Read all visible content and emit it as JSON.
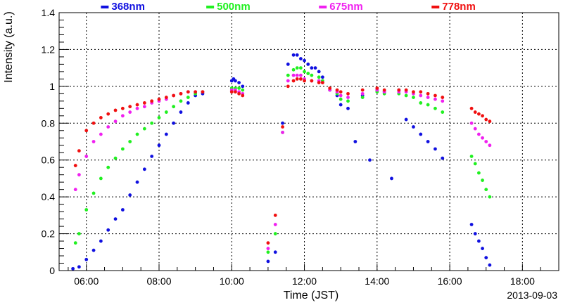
{
  "chart_data": {
    "type": "scatter",
    "xlabel": "Time (JST)",
    "ylabel": "Intensity (a.u.)",
    "date_label": "2013-09-03",
    "x_unit": "hours",
    "xlim": [
      5.25,
      19.0
    ],
    "ylim": [
      0,
      1.4
    ],
    "x_ticks": [
      6,
      8,
      10,
      12,
      14,
      16,
      18
    ],
    "x_tick_labels": [
      "06:00",
      "08:00",
      "10:00",
      "12:00",
      "14:00",
      "16:00",
      "18:00"
    ],
    "y_ticks": [
      0,
      0.2,
      0.4,
      0.6,
      0.8,
      1,
      1.2,
      1.4
    ],
    "y_tick_labels": [
      "0",
      "0.2",
      "0.4",
      "0.6",
      "0.8",
      "1",
      "1.2",
      "1.4"
    ],
    "grid": true,
    "legend_position": "top",
    "series": [
      {
        "name": "368nm",
        "color": "#1010e0",
        "x": [
          5.63,
          5.8,
          6.0,
          6.2,
          6.4,
          6.6,
          6.8,
          7.0,
          7.2,
          7.4,
          7.6,
          7.8,
          8.0,
          8.2,
          8.4,
          8.6,
          8.8,
          9.0,
          9.2,
          10.0,
          10.05,
          10.1,
          10.2,
          10.3,
          11.0,
          11.2,
          11.4,
          11.55,
          11.7,
          11.8,
          11.9,
          12.0,
          12.1,
          12.2,
          12.3,
          12.4,
          12.5,
          12.7,
          12.9,
          13.0,
          13.2,
          13.4,
          13.6,
          13.8,
          14.0,
          14.2,
          14.4,
          14.6,
          14.8,
          15.0,
          15.2,
          15.4,
          15.6,
          15.8,
          16.6,
          16.7,
          16.8,
          16.9,
          17.0,
          17.1
        ],
        "y": [
          0.01,
          0.02,
          0.06,
          0.11,
          0.16,
          0.22,
          0.28,
          0.33,
          0.41,
          0.48,
          0.55,
          0.62,
          0.68,
          0.74,
          0.8,
          0.86,
          0.91,
          0.95,
          0.96,
          1.03,
          1.04,
          1.03,
          1.02,
          1.0,
          0.05,
          0.1,
          0.8,
          1.12,
          1.17,
          1.17,
          1.15,
          1.14,
          1.12,
          1.1,
          1.1,
          1.08,
          1.05,
          0.98,
          0.95,
          0.9,
          0.88,
          0.7,
          0.95,
          0.6,
          0.98,
          0.97,
          0.5,
          0.98,
          0.82,
          0.78,
          0.74,
          0.7,
          0.66,
          0.61,
          0.25,
          0.2,
          0.16,
          0.12,
          0.07,
          0.03
        ]
      },
      {
        "name": "500nm",
        "color": "#20f020",
        "x": [
          5.7,
          5.8,
          6.0,
          6.2,
          6.4,
          6.6,
          6.8,
          7.0,
          7.2,
          7.4,
          7.6,
          7.8,
          8.0,
          8.2,
          8.4,
          8.6,
          8.8,
          9.0,
          9.2,
          10.0,
          10.1,
          10.2,
          10.3,
          11.0,
          11.2,
          11.4,
          11.55,
          11.7,
          11.8,
          11.9,
          12.0,
          12.1,
          12.2,
          12.4,
          12.5,
          12.7,
          12.9,
          13.0,
          13.2,
          13.6,
          14.0,
          14.2,
          14.6,
          14.8,
          15.0,
          15.2,
          15.4,
          15.6,
          15.8,
          16.6,
          16.7,
          16.8,
          16.9,
          17.0,
          17.1
        ],
        "y": [
          0.15,
          0.2,
          0.33,
          0.42,
          0.5,
          0.56,
          0.61,
          0.66,
          0.7,
          0.74,
          0.77,
          0.8,
          0.83,
          0.86,
          0.89,
          0.92,
          0.94,
          0.96,
          0.97,
          0.99,
          0.99,
          0.99,
          0.98,
          0.1,
          0.2,
          0.75,
          1.06,
          1.09,
          1.1,
          1.1,
          1.08,
          1.07,
          1.06,
          1.05,
          1.03,
          0.98,
          0.96,
          0.93,
          0.92,
          0.94,
          0.97,
          0.96,
          0.96,
          0.95,
          0.94,
          0.91,
          0.9,
          0.88,
          0.86,
          0.62,
          0.58,
          0.53,
          0.49,
          0.44,
          0.4
        ]
      },
      {
        "name": "675nm",
        "color": "#f020f0",
        "x": [
          5.7,
          5.8,
          6.0,
          6.2,
          6.4,
          6.6,
          6.8,
          7.0,
          7.2,
          7.4,
          7.6,
          7.8,
          8.0,
          8.2,
          8.4,
          8.6,
          8.8,
          9.0,
          9.2,
          10.0,
          10.1,
          10.2,
          10.3,
          11.0,
          11.2,
          11.4,
          11.55,
          11.7,
          11.8,
          11.9,
          12.0,
          12.2,
          12.4,
          12.5,
          12.7,
          12.9,
          13.0,
          13.2,
          13.6,
          14.0,
          14.2,
          14.6,
          14.8,
          15.0,
          15.2,
          15.4,
          15.6,
          15.8,
          16.6,
          16.7,
          16.8,
          16.9,
          17.0,
          17.1
        ],
        "y": [
          0.44,
          0.52,
          0.62,
          0.7,
          0.74,
          0.78,
          0.81,
          0.84,
          0.86,
          0.88,
          0.89,
          0.91,
          0.92,
          0.93,
          0.95,
          0.96,
          0.97,
          0.97,
          0.97,
          0.98,
          0.98,
          0.97,
          0.96,
          0.12,
          0.25,
          0.75,
          1.03,
          1.06,
          1.06,
          1.06,
          1.04,
          1.03,
          1.03,
          1.02,
          0.98,
          0.97,
          0.95,
          0.94,
          0.96,
          0.98,
          0.97,
          0.97,
          0.97,
          0.96,
          0.95,
          0.94,
          0.93,
          0.92,
          0.8,
          0.77,
          0.74,
          0.72,
          0.7,
          0.68
        ]
      },
      {
        "name": "778nm",
        "color": "#f01010",
        "x": [
          5.7,
          5.8,
          6.0,
          6.2,
          6.4,
          6.6,
          6.8,
          7.0,
          7.2,
          7.4,
          7.6,
          7.8,
          8.0,
          8.2,
          8.4,
          8.6,
          8.8,
          9.0,
          9.2,
          10.0,
          10.1,
          10.2,
          10.3,
          11.0,
          11.2,
          11.4,
          11.55,
          11.7,
          11.8,
          11.9,
          12.0,
          12.2,
          12.4,
          12.5,
          12.7,
          12.9,
          13.0,
          13.2,
          13.6,
          14.0,
          14.2,
          14.6,
          14.8,
          15.0,
          15.2,
          15.4,
          15.6,
          15.8,
          16.6,
          16.7,
          16.8,
          16.9,
          17.0,
          17.1
        ],
        "y": [
          0.57,
          0.65,
          0.76,
          0.8,
          0.83,
          0.85,
          0.87,
          0.88,
          0.89,
          0.9,
          0.91,
          0.92,
          0.93,
          0.94,
          0.95,
          0.96,
          0.97,
          0.97,
          0.97,
          0.97,
          0.97,
          0.96,
          0.95,
          0.15,
          0.3,
          0.78,
          1.0,
          1.03,
          1.04,
          1.04,
          1.03,
          1.03,
          1.02,
          1.02,
          0.99,
          0.98,
          0.97,
          0.96,
          0.98,
          0.99,
          0.98,
          0.98,
          0.98,
          0.97,
          0.97,
          0.96,
          0.95,
          0.94,
          0.88,
          0.86,
          0.85,
          0.84,
          0.82,
          0.81
        ]
      }
    ]
  }
}
